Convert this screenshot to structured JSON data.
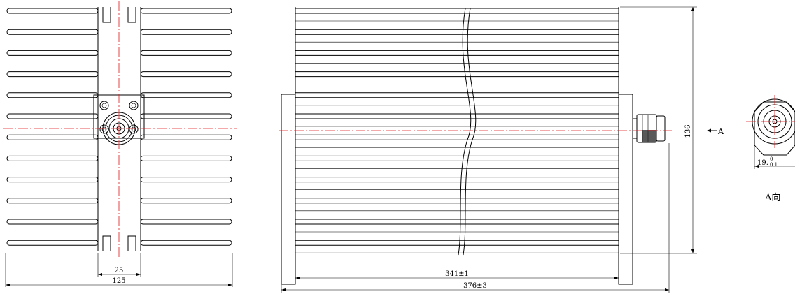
{
  "front_view": {
    "dim_inner": "25",
    "dim_overall": "125"
  },
  "side_view": {
    "dim_height": "136",
    "dim_body": "341±1",
    "dim_total": "376±3",
    "arrow_label": "A"
  },
  "end_view": {
    "dim_diameter_main": "19.",
    "dim_tol_upper": "0",
    "dim_tol_lower": "0.1",
    "view_label": "A向"
  },
  "colors": {
    "lines": "#000000",
    "centerline": "#e0181b"
  }
}
